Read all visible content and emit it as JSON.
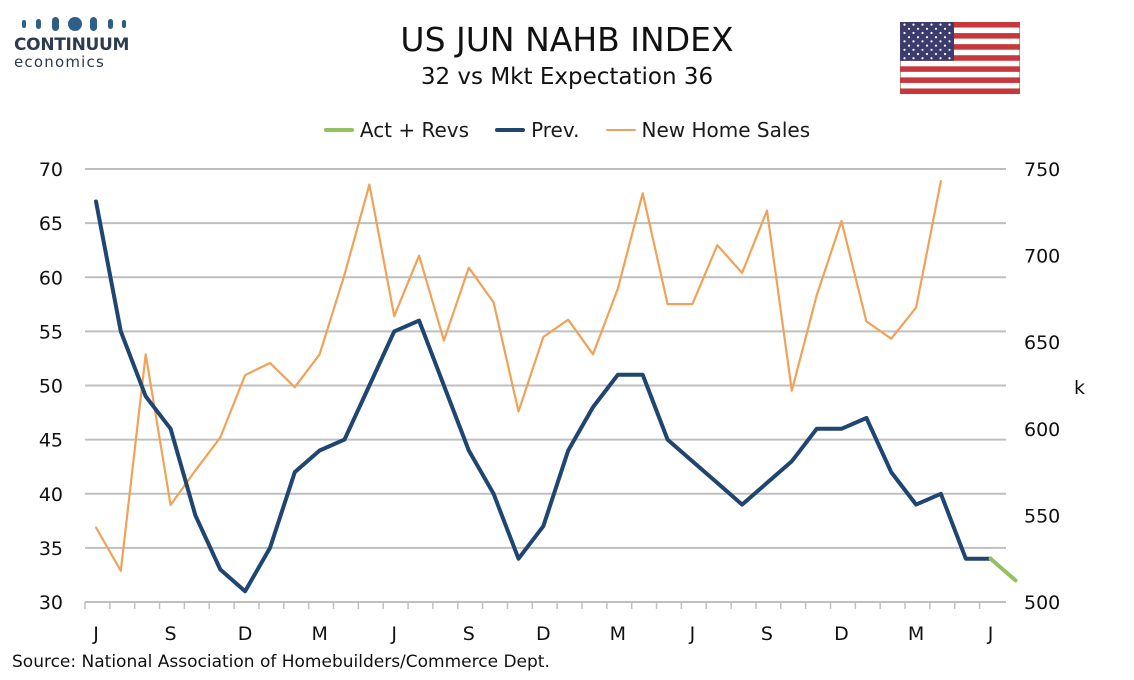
{
  "header": {
    "title": "US JUN NAHB INDEX",
    "subtitle": "32 vs Mkt Expectation 36"
  },
  "logo": {
    "name": "CONTINUUM",
    "sub": "economics"
  },
  "source": "Source: National Association of Homebuilders/Commerce Dept.",
  "colors": {
    "act": "#93c15f",
    "prev": "#1f4571",
    "sales": "#f0a258",
    "grid": "#bfbfbf"
  },
  "chart_data": {
    "type": "line",
    "title": "US JUN NAHB INDEX",
    "subtitle": "32 vs Mkt Expectation 36",
    "x_tick_labels": [
      "J",
      "S",
      "D",
      "M",
      "J",
      "S",
      "D",
      "M",
      "J",
      "S",
      "D",
      "M",
      "J"
    ],
    "y_left": {
      "min": 30,
      "max": 70,
      "ticks": [
        30,
        35,
        40,
        45,
        50,
        55,
        60,
        65,
        70
      ]
    },
    "y_right": {
      "min": 500,
      "max": 750,
      "ticks": [
        500,
        550,
        600,
        650,
        700,
        750
      ],
      "label": "k"
    },
    "legend_position": "top",
    "grid": true,
    "series": [
      {
        "name": "Act + Revs",
        "axis": "left",
        "start_index": 36,
        "values": [
          34,
          32
        ]
      },
      {
        "name": "Prev.",
        "axis": "left",
        "start_index": 0,
        "values": [
          67,
          55,
          49,
          46,
          38,
          33,
          31,
          35,
          42,
          44,
          45,
          50,
          55,
          56,
          50,
          44,
          40,
          34,
          37,
          44,
          48,
          51,
          51,
          45,
          43,
          41,
          39,
          41,
          43,
          46,
          46,
          47,
          42,
          39,
          40,
          34,
          34
        ]
      },
      {
        "name": "New Home Sales",
        "axis": "right",
        "start_index": 0,
        "values": [
          543,
          518,
          643,
          556,
          576,
          595,
          631,
          638,
          624,
          643,
          689,
          741,
          665,
          700,
          651,
          693,
          673,
          610,
          653,
          663,
          643,
          681,
          736,
          672,
          672,
          706,
          690,
          726,
          622,
          677,
          720,
          662,
          652,
          670,
          743
        ]
      }
    ]
  }
}
